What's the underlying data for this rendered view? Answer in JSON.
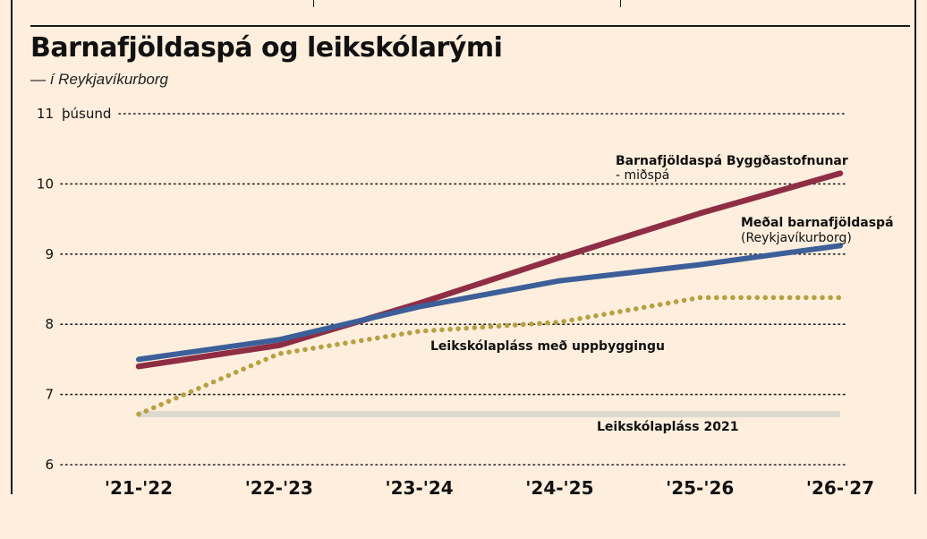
{
  "header": {
    "title": "Barnafjöldaspá og leikskólarými",
    "subtitle": "— í Reykjavíkurborg"
  },
  "colors": {
    "background": "#fdeedd",
    "byggdastofnun": "#8f2d45",
    "reykjavik": "#3c5f99",
    "uppbygging": "#b8a040",
    "plass2021": "#dcdad0",
    "grid": "#222222"
  },
  "chart_data": {
    "type": "line",
    "categories": [
      "'21-'22",
      "'22-'23",
      "'23-'24",
      "'24-'25",
      "'25-'26",
      "'26-'27"
    ],
    "ylim": [
      6,
      11
    ],
    "yticks": [
      "6",
      "7",
      "8",
      "9",
      "10",
      "11"
    ],
    "yunit": "þúsund",
    "grid": "horizontal dotted",
    "series": [
      {
        "key": "byggdastofnun",
        "name": "Barnafjöldaspá Byggðastofnunar",
        "name_sub": "- miðspá",
        "values": [
          7.4,
          7.7,
          8.3,
          8.95,
          9.58,
          10.15
        ]
      },
      {
        "key": "reykjavik",
        "name": "Meðal barnafjöldaspá",
        "name_sub": "(Reykjavíkurborg)",
        "values": [
          7.5,
          7.78,
          8.25,
          8.62,
          8.85,
          9.12
        ]
      },
      {
        "key": "uppbygging",
        "name": "Leikskólapláss með uppbyggingu",
        "values": [
          6.72,
          7.58,
          7.9,
          8.03,
          8.38,
          8.38
        ]
      },
      {
        "key": "plass2021",
        "name": "Leikskólapláss 2021",
        "values": [
          6.72,
          6.72,
          6.72,
          6.72,
          6.72,
          6.72
        ]
      }
    ]
  }
}
